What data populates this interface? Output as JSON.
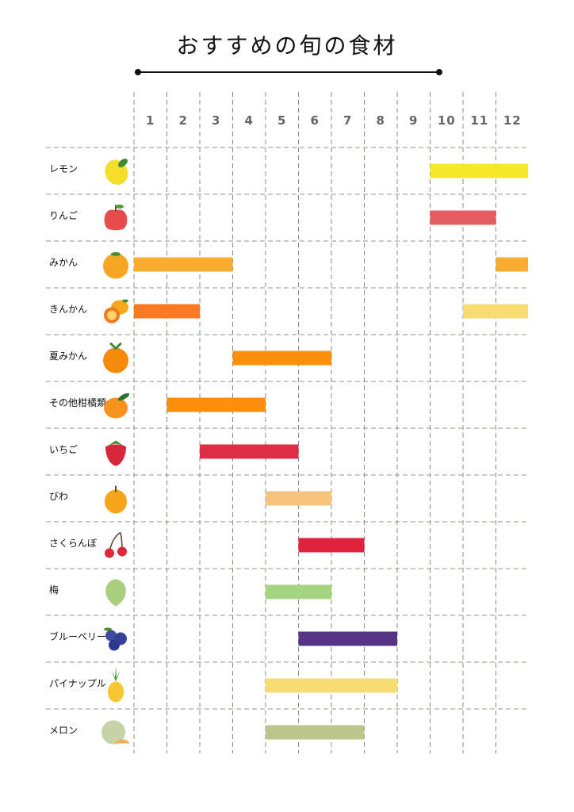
{
  "chart_data": {
    "type": "bar",
    "title": "おすすめの旬の食材",
    "x_ticks": [
      "1",
      "2",
      "3",
      "4",
      "5",
      "6",
      "7",
      "8",
      "9",
      "10",
      "11",
      "12"
    ],
    "xlim": [
      1,
      13
    ],
    "grid": true,
    "rows": [
      {
        "label": "レモン",
        "icon": "lemon-icon",
        "color": "#f5e829",
        "ranges": [
          [
            10,
            13
          ]
        ]
      },
      {
        "label": "りんご",
        "icon": "apple-icon",
        "color": "#e55d60",
        "ranges": [
          [
            10,
            12
          ]
        ]
      },
      {
        "label": "みかん",
        "icon": "mikan-icon",
        "color": "#f9ac2f",
        "ranges": [
          [
            1,
            4
          ],
          [
            12,
            13
          ]
        ]
      },
      {
        "label": "きんかん",
        "icon": "kumquat-icon",
        "color": "#f97a22",
        "ranges": [
          [
            1,
            3
          ]
        ]
      },
      {
        "label": "きんかん",
        "icon": "kumquat-icon",
        "color": "#f8dc72",
        "ranges": [
          [
            11,
            13
          ]
        ],
        "continuation": true
      },
      {
        "label": "夏みかん",
        "icon": "natsumikan-icon",
        "color": "#fb8f0c",
        "ranges": [
          [
            4,
            7
          ]
        ]
      },
      {
        "label": "その他柑橘類",
        "icon": "citrus-icon",
        "color": "#fb8f0c",
        "ranges": [
          [
            2,
            5
          ]
        ]
      },
      {
        "label": "いちご",
        "icon": "strawberry-icon",
        "color": "#de2e46",
        "ranges": [
          [
            3,
            6
          ]
        ]
      },
      {
        "label": "びわ",
        "icon": "loquat-icon",
        "color": "#f5c37c",
        "ranges": [
          [
            5,
            7
          ]
        ]
      },
      {
        "label": "さくらんぼ",
        "icon": "cherry-icon",
        "color": "#e0223f",
        "ranges": [
          [
            6,
            8
          ]
        ]
      },
      {
        "label": "梅",
        "icon": "ume-icon",
        "color": "#a5d581",
        "ranges": [
          [
            5,
            7
          ]
        ]
      },
      {
        "label": "ブルーベリー",
        "icon": "blueberry-icon",
        "color": "#573487",
        "ranges": [
          [
            6,
            9
          ]
        ]
      },
      {
        "label": "パイナップル",
        "icon": "pineapple-icon",
        "color": "#f7dd74",
        "ranges": [
          [
            5,
            9
          ]
        ]
      },
      {
        "label": "メロン",
        "icon": "melon-icon",
        "color": "#bcc58a",
        "ranges": [
          [
            5,
            8
          ]
        ]
      }
    ]
  }
}
